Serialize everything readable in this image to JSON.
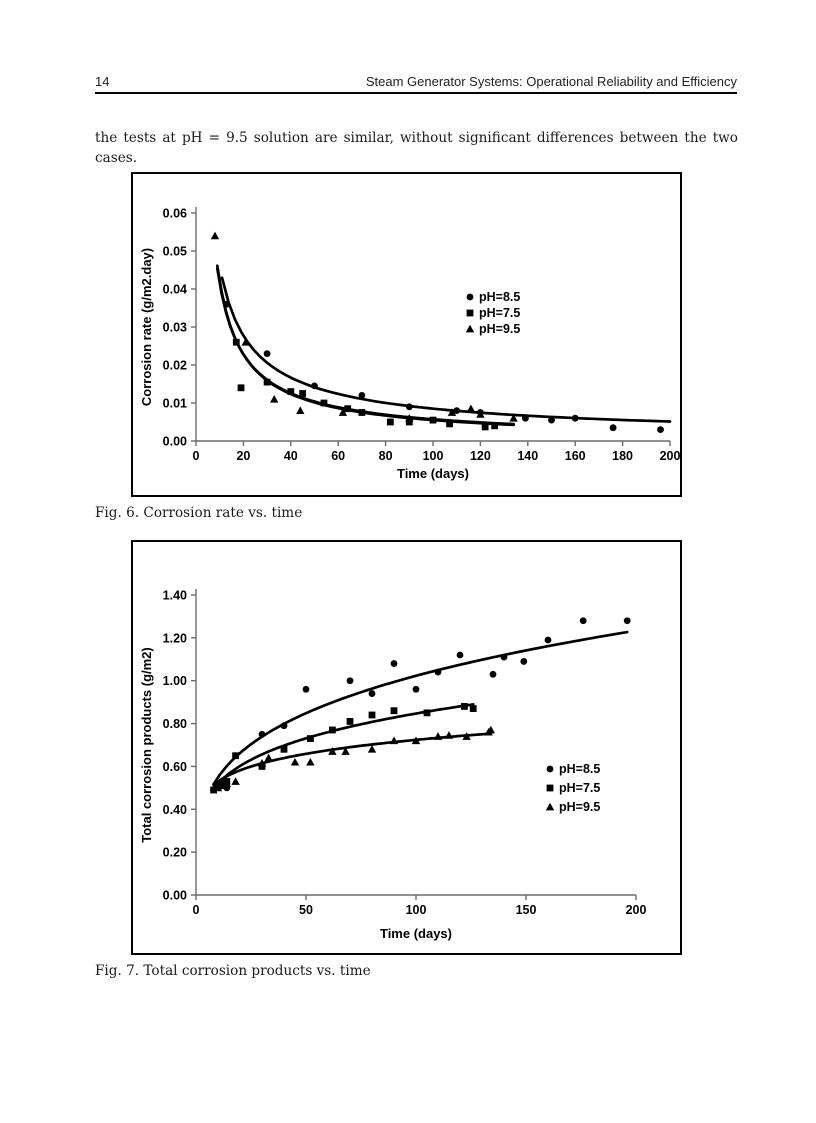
{
  "header": {
    "page_number": "14",
    "title": "Steam Generator Systems: Operational Reliability and Efficiency"
  },
  "paragraph": "the tests at pH = 9.5 solution are similar, without significant differences between the two cases.",
  "figures": [
    {
      "caption": "Fig. 6. Corrosion rate vs. time"
    },
    {
      "caption": "Fig. 7. Total corrosion products vs. time"
    }
  ],
  "colors": {
    "ink": "#000000",
    "axis": "#6b6b6b",
    "frame": "#000000"
  },
  "chart_data": [
    {
      "type": "scatter",
      "title": "",
      "xlabel": "Time (days)",
      "ylabel": "Corrosion rate (g/m2.day)",
      "xlim": [
        0,
        200
      ],
      "ylim": [
        0,
        0.06
      ],
      "grid": false,
      "legend_position": "inside-upper-right",
      "xticks": [
        0,
        20,
        40,
        60,
        80,
        100,
        120,
        140,
        160,
        180,
        200
      ],
      "xtick_labels": [
        "0",
        "20",
        "40",
        "60",
        "80",
        "100",
        "120",
        "140",
        "160",
        "180",
        "200"
      ],
      "yticks": [
        0,
        0.01,
        0.02,
        0.03,
        0.04,
        0.05,
        0.06
      ],
      "ytick_labels": [
        "0.00",
        "0.01",
        "0.02",
        "0.03",
        "0.04",
        "0.05",
        "0.06"
      ],
      "series": [
        {
          "name": "pH=8.5",
          "marker": "circle",
          "points": [
            [
              13,
              0.036
            ],
            [
              30,
              0.023
            ],
            [
              50,
              0.0145
            ],
            [
              70,
              0.012
            ],
            [
              90,
              0.009
            ],
            [
              110,
              0.008
            ],
            [
              120,
              0.0075
            ],
            [
              139,
              0.006
            ],
            [
              150,
              0.0055
            ],
            [
              160,
              0.006
            ],
            [
              176,
              0.0035
            ],
            [
              196,
              0.003
            ]
          ],
          "trend": {
            "type": "power",
            "a": 0.249,
            "b": -0.733,
            "x_start": 11,
            "x_end": 200
          }
        },
        {
          "name": "pH=7.5",
          "marker": "square",
          "points": [
            [
              17,
              0.026
            ],
            [
              19,
              0.014
            ],
            [
              30,
              0.0155
            ],
            [
              40,
              0.013
            ],
            [
              45,
              0.0125
            ],
            [
              54,
              0.01
            ],
            [
              64,
              0.0085
            ],
            [
              70,
              0.0075
            ],
            [
              82,
              0.005
            ],
            [
              90,
              0.005
            ],
            [
              100,
              0.0055
            ],
            [
              107,
              0.0045
            ],
            [
              122,
              0.0037
            ],
            [
              126,
              0.004
            ]
          ],
          "trend": {
            "type": "power",
            "a": 0.321,
            "b": -0.883,
            "x_start": 9,
            "x_end": 134
          }
        },
        {
          "name": "pH=9.5",
          "marker": "triangle",
          "points": [
            [
              8,
              0.054
            ],
            [
              21,
              0.026
            ],
            [
              33,
              0.011
            ],
            [
              44,
              0.008
            ],
            [
              62,
              0.0075
            ],
            [
              90,
              0.006
            ],
            [
              108,
              0.0075
            ],
            [
              116,
              0.0085
            ],
            [
              120,
              0.007
            ],
            [
              134,
              0.006
            ]
          ],
          "trend": {
            "type": "power",
            "a": 0.3,
            "b": -0.86,
            "x_start": 9,
            "x_end": 134
          }
        }
      ]
    },
    {
      "type": "scatter",
      "title": "",
      "xlabel": "Time (days)",
      "ylabel": "Total corrosion products (g/m2)",
      "xlim": [
        0,
        200
      ],
      "ylim": [
        0,
        1.4
      ],
      "grid": false,
      "legend_position": "inside-middle-right",
      "xticks": [
        0,
        50,
        100,
        150,
        200
      ],
      "xtick_labels": [
        "0",
        "50",
        "100",
        "150",
        "200"
      ],
      "yticks": [
        0,
        0.2,
        0.4,
        0.6,
        0.8,
        1.0,
        1.2,
        1.4
      ],
      "ytick_labels": [
        "0.00",
        "0.20",
        "0.40",
        "0.60",
        "0.80",
        "1.00",
        "1.20",
        "1.40"
      ],
      "series": [
        {
          "name": "pH=8.5",
          "marker": "circle",
          "points": [
            [
              8,
              0.49
            ],
            [
              12,
              0.52
            ],
            [
              14,
              0.5
            ],
            [
              30,
              0.75
            ],
            [
              40,
              0.79
            ],
            [
              50,
              0.96
            ],
            [
              70,
              1.0
            ],
            [
              80,
              0.94
            ],
            [
              90,
              1.08
            ],
            [
              100,
              0.96
            ],
            [
              110,
              1.04
            ],
            [
              120,
              1.12
            ],
            [
              135,
              1.03
            ],
            [
              140,
              1.11
            ],
            [
              149,
              1.09
            ],
            [
              160,
              1.19
            ],
            [
              176,
              1.28
            ],
            [
              196,
              1.28
            ]
          ],
          "trend": {
            "type": "power",
            "a": 0.295,
            "b": 0.27,
            "x_start": 8,
            "x_end": 196
          }
        },
        {
          "name": "pH=7.5",
          "marker": "square",
          "points": [
            [
              8,
              0.49
            ],
            [
              12,
              0.51
            ],
            [
              14,
              0.53
            ],
            [
              18,
              0.65
            ],
            [
              30,
              0.6
            ],
            [
              40,
              0.68
            ],
            [
              52,
              0.73
            ],
            [
              62,
              0.77
            ],
            [
              70,
              0.81
            ],
            [
              80,
              0.84
            ],
            [
              90,
              0.86
            ],
            [
              105,
              0.85
            ],
            [
              122,
              0.88
            ],
            [
              126,
              0.87
            ]
          ],
          "trend": {
            "type": "power",
            "a": 0.319,
            "b": 0.212,
            "x_start": 8,
            "x_end": 126
          }
        },
        {
          "name": "pH=9.5",
          "marker": "triangle",
          "points": [
            [
              10,
              0.5
            ],
            [
              14,
              0.52
            ],
            [
              18,
              0.53
            ],
            [
              30,
              0.615
            ],
            [
              33,
              0.64
            ],
            [
              45,
              0.62
            ],
            [
              52,
              0.62
            ],
            [
              62,
              0.67
            ],
            [
              68,
              0.67
            ],
            [
              80,
              0.68
            ],
            [
              90,
              0.72
            ],
            [
              100,
              0.72
            ],
            [
              110,
              0.74
            ],
            [
              115,
              0.745
            ],
            [
              123,
              0.74
            ],
            [
              133,
              0.76
            ],
            [
              134,
              0.77
            ]
          ],
          "trend": {
            "type": "power",
            "a": 0.387,
            "b": 0.136,
            "x_start": 8,
            "x_end": 134
          }
        }
      ]
    }
  ]
}
